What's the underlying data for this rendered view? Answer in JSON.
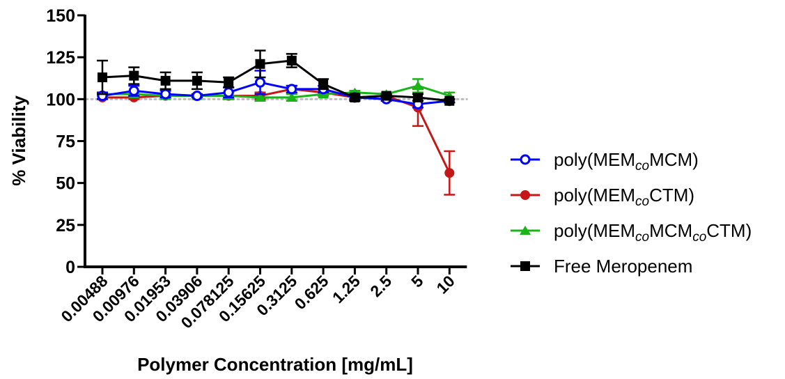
{
  "chart_data": {
    "type": "line",
    "title": "",
    "xlabel": "Polymer Concentration [mg/mL]",
    "ylabel": "% Viability",
    "ylim": [
      0,
      150
    ],
    "yticks": [
      "0",
      "25",
      "50",
      "75",
      "100",
      "125",
      "150"
    ],
    "categories": [
      "0.00488",
      "0.00976",
      "0.01953",
      "0.03906",
      "0.078125",
      "0.15625",
      "0.3125",
      "0.625",
      "1.25",
      "2.5",
      "5",
      "10"
    ],
    "reference_line": {
      "y": 100,
      "style": "dotted",
      "color": "#bbbbbb"
    },
    "grid": false,
    "legend_position": "right",
    "series": [
      {
        "name_parts": [
          {
            "text": "poly(MEM",
            "italic": false,
            "sub": false
          },
          {
            "text": "co",
            "italic": true,
            "sub": true
          },
          {
            "text": "MCM)",
            "italic": false,
            "sub": false
          }
        ],
        "color": "#0000ff",
        "marker": "open-circle",
        "values": [
          102,
          105,
          103,
          102,
          104,
          110,
          106,
          106,
          101,
          100,
          97,
          99
        ],
        "errors": [
          2,
          3,
          2,
          1,
          3,
          7,
          2,
          2,
          1,
          1,
          2,
          1
        ]
      },
      {
        "name_parts": [
          {
            "text": "poly(MEM",
            "italic": false,
            "sub": false
          },
          {
            "text": "co",
            "italic": true,
            "sub": true
          },
          {
            "text": "CTM)",
            "italic": false,
            "sub": false
          }
        ],
        "color": "#c41818",
        "marker": "filled-circle",
        "values": [
          101,
          101,
          102,
          102,
          102,
          102,
          106,
          104,
          101,
          102,
          95,
          56
        ],
        "errors": [
          1,
          1,
          1,
          1,
          2,
          2,
          2,
          2,
          1,
          1,
          11,
          13
        ]
      },
      {
        "name_parts": [
          {
            "text": "poly(MEM",
            "italic": false,
            "sub": false
          },
          {
            "text": "co",
            "italic": true,
            "sub": true
          },
          {
            "text": "MCM",
            "italic": false,
            "sub": false
          },
          {
            "text": "co",
            "italic": true,
            "sub": true
          },
          {
            "text": "CTM)",
            "italic": false,
            "sub": false
          }
        ],
        "color": "#18b418",
        "marker": "filled-triangle",
        "values": [
          103,
          103,
          102,
          102,
          102,
          101,
          101,
          103,
          104,
          103,
          108,
          102
        ],
        "errors": [
          1,
          1,
          1,
          1,
          2,
          2,
          2,
          1,
          1,
          1,
          4,
          2
        ]
      },
      {
        "name_parts": [
          {
            "text": "Free Meropenem",
            "italic": false,
            "sub": false
          }
        ],
        "color": "#000000",
        "marker": "filled-square",
        "values": [
          113,
          114,
          111,
          111,
          110,
          121,
          123,
          109,
          101,
          102,
          101,
          99
        ],
        "errors": [
          10,
          5,
          5,
          5,
          3,
          8,
          4,
          3,
          2,
          1,
          2,
          1
        ]
      }
    ]
  }
}
